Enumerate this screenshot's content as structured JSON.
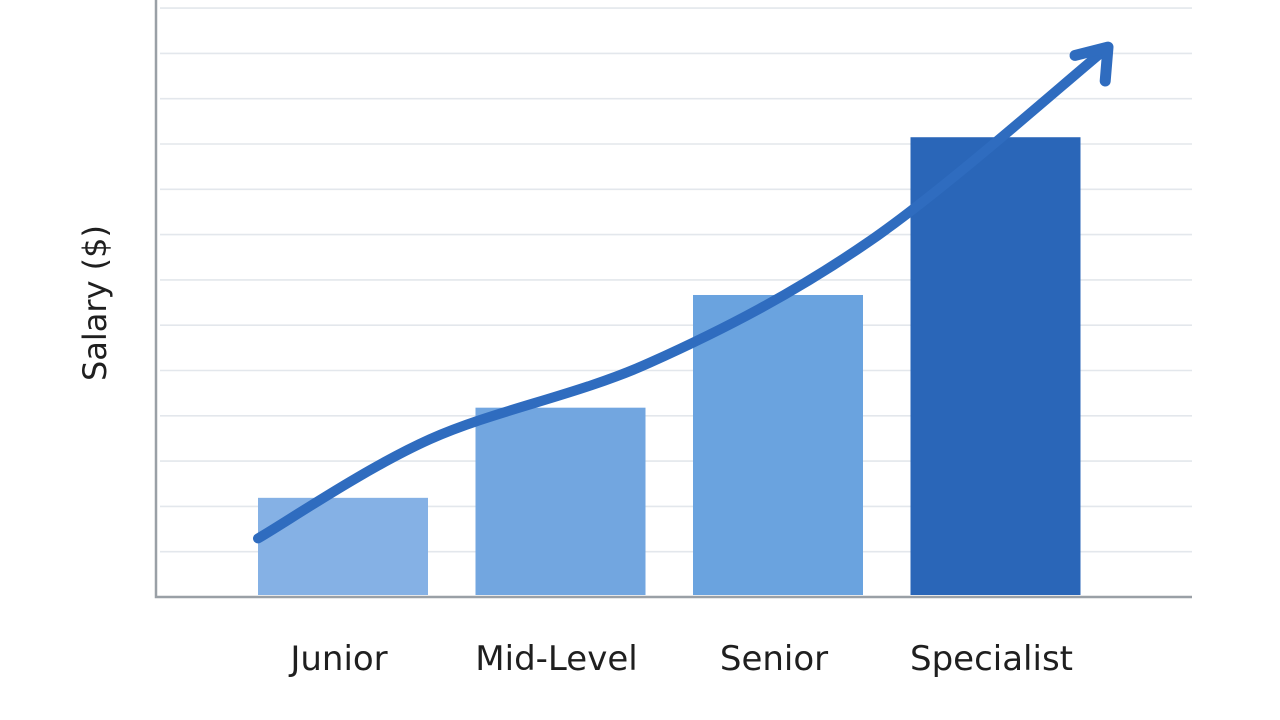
{
  "chart_data": {
    "type": "bar",
    "title": "",
    "ylabel": "Salary ($)",
    "xlabel": "",
    "categories": [
      "Junior",
      "Mid-Level",
      "Senior",
      "Specialist"
    ],
    "values": [
      22,
      42,
      67,
      102
    ],
    "ylim": [
      0,
      132
    ],
    "grid": true,
    "trend_arrow": {
      "color": "#2f6cbf",
      "y": [
        13,
        35,
        52,
        79,
        122
      ]
    },
    "bar_colors": [
      "#85b1e5",
      "#72a6e0",
      "#6aa3df",
      "#2a66b8"
    ]
  }
}
